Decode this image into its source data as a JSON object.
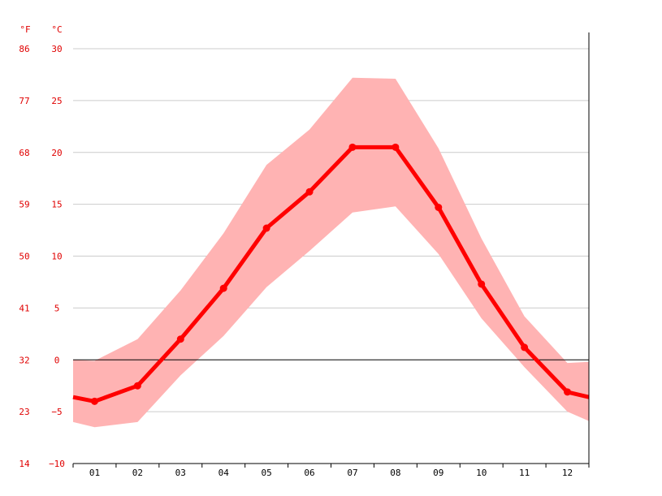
{
  "chart_data": {
    "type": "line",
    "units": {
      "fahrenheit": "°F",
      "celsius": "°C"
    },
    "categories": [
      "01",
      "02",
      "03",
      "04",
      "05",
      "06",
      "07",
      "08",
      "09",
      "10",
      "11",
      "12"
    ],
    "series": [
      {
        "values": [
          -4.0,
          -2.5,
          2.0,
          6.9,
          12.7,
          16.2,
          20.5,
          20.5,
          14.7,
          7.3,
          1.2,
          -3.1
        ]
      }
    ],
    "range_band": {
      "low": [
        -6.5,
        -6.0,
        -1.5,
        2.3,
        7.0,
        10.5,
        14.2,
        14.8,
        10.2,
        4.0,
        -0.7,
        -5.0
      ],
      "high": [
        -0.1,
        2.0,
        6.7,
        12.2,
        18.8,
        22.2,
        27.2,
        27.1,
        20.4,
        11.7,
        4.2,
        -0.3
      ]
    },
    "edge_values": {
      "line_left": -3.6,
      "line_right": -3.6,
      "low_left": -6.0,
      "low_right": -5.9,
      "high_left": 0.0,
      "high_right": -0.2
    },
    "celsius_ticks": [
      "30",
      "25",
      "20",
      "15",
      "10",
      "5",
      "0",
      "−5",
      "−10"
    ],
    "fahrenheit_ticks": [
      "86",
      "77",
      "68",
      "59",
      "50",
      "41",
      "32",
      "23",
      "14"
    ],
    "ylim": [
      -10,
      30
    ],
    "grid": true,
    "colors": {
      "line": "#ff0000",
      "band": "#ffb3b3",
      "tick_text": "#e00000",
      "grid": "#cccccc",
      "zero_line": "#000000"
    }
  }
}
